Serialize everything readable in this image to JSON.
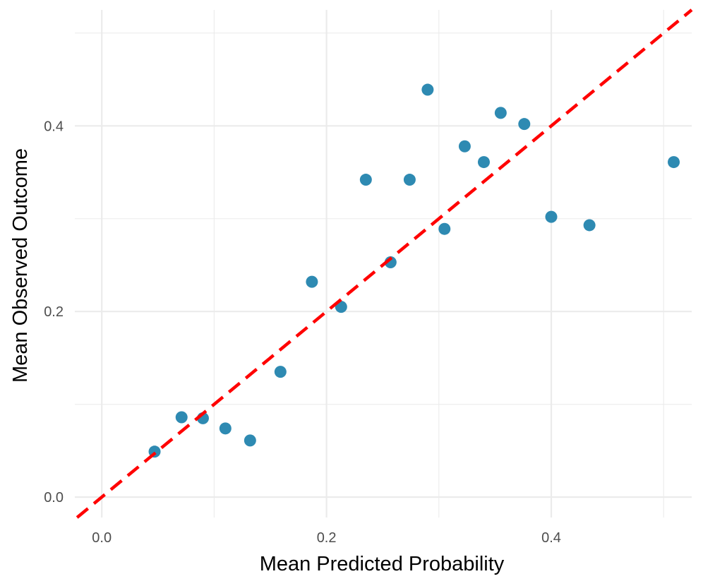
{
  "chart_data": {
    "type": "scatter",
    "xlabel": "Mean Predicted Probability",
    "ylabel": "Mean Observed Outcome",
    "xlim": [
      -0.024,
      0.525
    ],
    "ylim": [
      -0.022,
      0.525
    ],
    "x_ticks": [
      {
        "value": 0.0,
        "label": "0.0"
      },
      {
        "value": 0.2,
        "label": "0.2"
      },
      {
        "value": 0.4,
        "label": "0.4"
      }
    ],
    "y_ticks": [
      {
        "value": 0.0,
        "label": "0.0"
      },
      {
        "value": 0.2,
        "label": "0.2"
      },
      {
        "value": 0.4,
        "label": "0.4"
      }
    ],
    "x_minor": [
      0.1,
      0.3,
      0.5
    ],
    "y_minor": [
      0.1,
      0.3,
      0.5
    ],
    "grid": true,
    "point_color": "#2e8ab2",
    "reference_line": {
      "type": "identity",
      "color": "#ff0000",
      "style": "dashed"
    },
    "points": [
      {
        "x": 0.047,
        "y": 0.049
      },
      {
        "x": 0.071,
        "y": 0.086
      },
      {
        "x": 0.09,
        "y": 0.085
      },
      {
        "x": 0.11,
        "y": 0.074
      },
      {
        "x": 0.132,
        "y": 0.061
      },
      {
        "x": 0.159,
        "y": 0.135
      },
      {
        "x": 0.187,
        "y": 0.232
      },
      {
        "x": 0.213,
        "y": 0.205
      },
      {
        "x": 0.235,
        "y": 0.342
      },
      {
        "x": 0.257,
        "y": 0.253
      },
      {
        "x": 0.274,
        "y": 0.342
      },
      {
        "x": 0.29,
        "y": 0.439
      },
      {
        "x": 0.305,
        "y": 0.289
      },
      {
        "x": 0.323,
        "y": 0.378
      },
      {
        "x": 0.34,
        "y": 0.361
      },
      {
        "x": 0.355,
        "y": 0.414
      },
      {
        "x": 0.376,
        "y": 0.402
      },
      {
        "x": 0.4,
        "y": 0.302
      },
      {
        "x": 0.434,
        "y": 0.293
      },
      {
        "x": 0.509,
        "y": 0.361
      }
    ]
  }
}
